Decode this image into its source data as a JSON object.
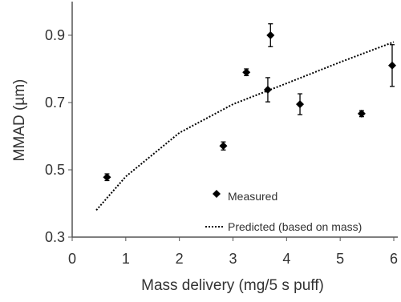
{
  "chart_data": {
    "type": "scatter",
    "x_label": "Mass delivery (mg/5 s puff)",
    "y_label": "MMAD (µm)",
    "xlim": [
      0,
      6
    ],
    "xticks": [
      0,
      1,
      2,
      3,
      4,
      5,
      6
    ],
    "ylim": [
      0.3,
      1.0
    ],
    "yticks": [
      0.3,
      0.5,
      0.7,
      0.9
    ],
    "legend": "lower right",
    "series": [
      {
        "name": "Measured",
        "type": "scatter",
        "color": "#000000",
        "x": [
          0.65,
          2.82,
          3.25,
          3.7,
          3.65,
          4.25,
          5.4,
          5.97
        ],
        "values": [
          0.478,
          0.571,
          0.79,
          0.9,
          0.738,
          0.695,
          0.667,
          0.81
        ],
        "errors": [
          0.01,
          0.012,
          0.01,
          0.034,
          0.036,
          0.031,
          0.009,
          0.062
        ]
      },
      {
        "name": "Predicted (based on mass)",
        "type": "line",
        "color": "#000000",
        "dash": "dotted",
        "x": [
          0.45,
          1.0,
          2.0,
          3.0,
          4.0,
          5.0,
          6.0
        ],
        "values": [
          0.38,
          0.48,
          0.61,
          0.695,
          0.757,
          0.82,
          0.88
        ]
      }
    ]
  }
}
